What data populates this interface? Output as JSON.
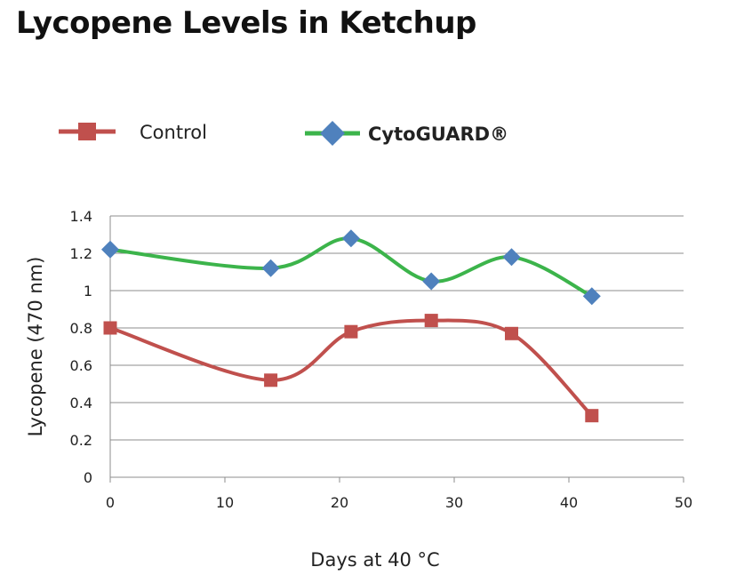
{
  "chart_data": {
    "type": "line",
    "title": "Lycopene Levels in Ketchup",
    "xlabel": "Days at 40 °C",
    "ylabel": "Lycopene (470 nm)",
    "xlim": [
      0,
      50
    ],
    "ylim": [
      0,
      1.4
    ],
    "xticks": [
      "0",
      "10",
      "20",
      "30",
      "40",
      "50"
    ],
    "yticks": [
      "0",
      "0.2",
      "0.4",
      "0.6",
      "0.8",
      "1",
      "1.2",
      "1.4"
    ],
    "grid": "horizontal",
    "legend_position": "top",
    "smooth": true,
    "series": [
      {
        "name": "Control",
        "color": "#c0504d",
        "line_color": "#c0504d",
        "marker": "square",
        "x": [
          0,
          14,
          21,
          28,
          35,
          42
        ],
        "y": [
          0.8,
          0.52,
          0.78,
          0.84,
          0.77,
          0.33
        ]
      },
      {
        "name": "CytoGUARD®",
        "color": "#4f81bd",
        "line_color": "#3cb44b",
        "marker": "diamond",
        "x": [
          0,
          14,
          21,
          28,
          35,
          42
        ],
        "y": [
          1.22,
          1.12,
          1.28,
          1.05,
          1.18,
          0.97
        ]
      }
    ]
  }
}
